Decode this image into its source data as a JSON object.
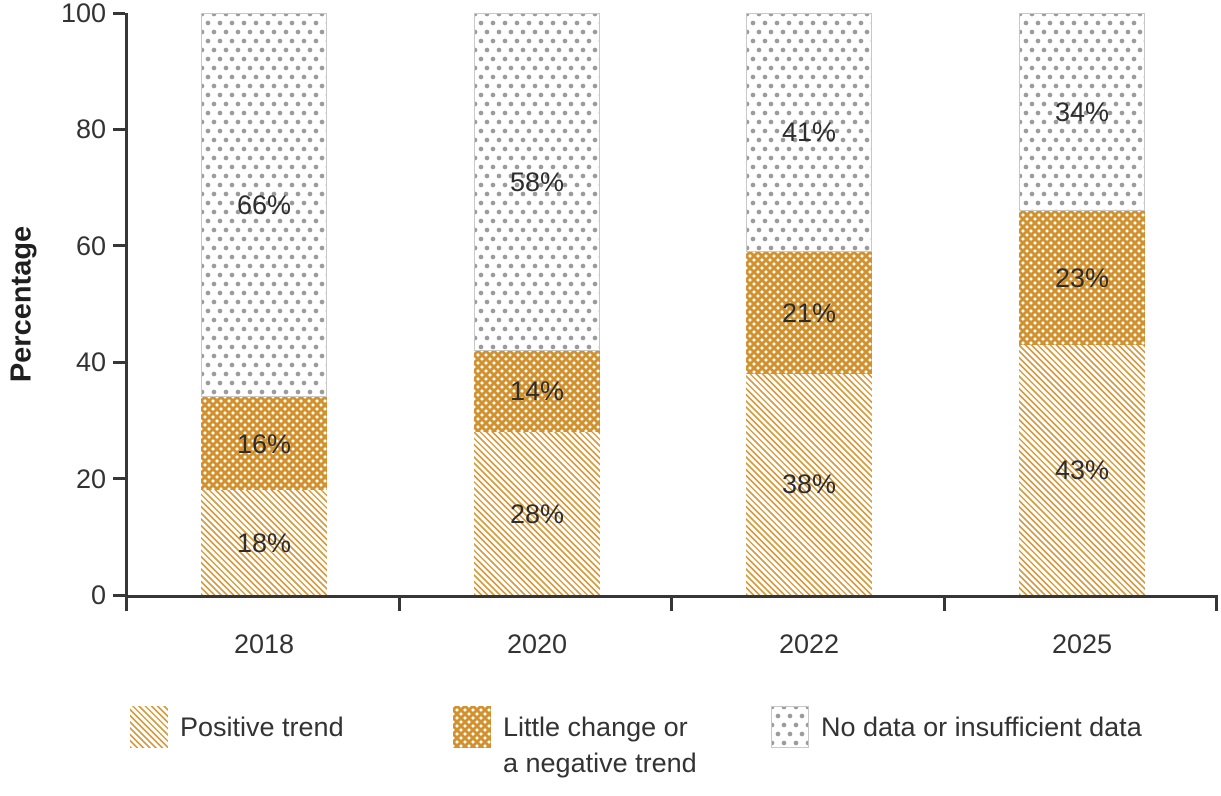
{
  "chart_data": {
    "type": "stacked_bar",
    "title": "",
    "ylabel": "Percentage",
    "xlabel": "",
    "ylim": [
      0,
      100
    ],
    "yticks": [
      "0",
      "20",
      "40",
      "60",
      "80",
      "100"
    ],
    "grid": "off",
    "legend_position": "bottom",
    "categories": [
      "2018",
      "2020",
      "2022",
      "2025"
    ],
    "series": [
      {
        "name": "Positive trend",
        "pattern": "hatch",
        "values": [
          18,
          28,
          38,
          43
        ],
        "labels": [
          "18%",
          "28%",
          "38%",
          "43%"
        ]
      },
      {
        "name": "Little change or a negative trend",
        "pattern": "orange-dots",
        "values": [
          16,
          14,
          21,
          23
        ],
        "labels": [
          "16%",
          "14%",
          "21%",
          "23%"
        ]
      },
      {
        "name": "No data or insufficient data",
        "pattern": "gray-dots",
        "values": [
          66,
          58,
          41,
          34
        ],
        "labels": [
          "66%",
          "58%",
          "41%",
          "34%"
        ]
      }
    ]
  },
  "legend": {
    "items": [
      {
        "pattern": "hatch",
        "lines": [
          "Positive trend"
        ]
      },
      {
        "pattern": "orange-dots",
        "lines": [
          "Little change or",
          "a negative trend"
        ]
      },
      {
        "pattern": "gray-dots",
        "lines": [
          "No data or insufficient data"
        ]
      }
    ]
  },
  "colors": {
    "axis": "#363636",
    "text": "#333333",
    "label_text": "#2d2d2d",
    "hatch_stripe": "#D79B3F",
    "solid_orange": "#D1912E",
    "dot_gray": "#9B9B9B",
    "segment_border": "#C8C8C8"
  }
}
